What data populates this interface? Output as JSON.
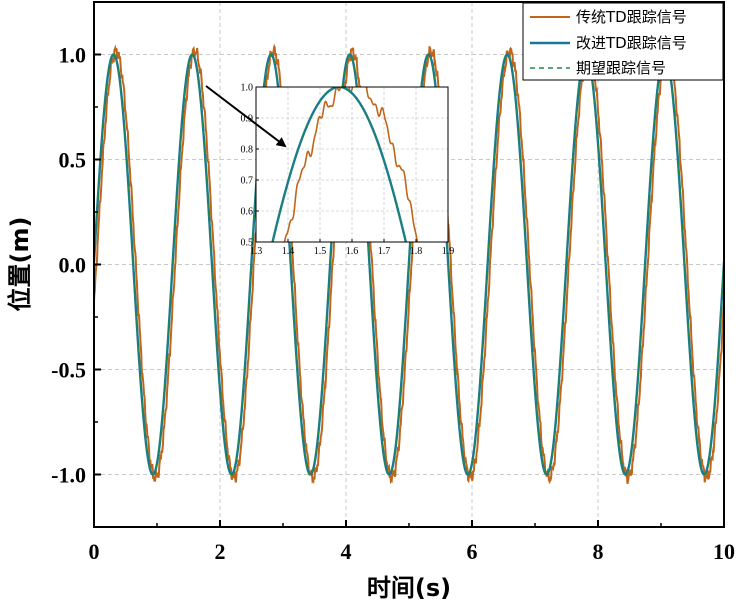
{
  "chart_data": {
    "type": "line",
    "title": "",
    "xlabel": "时间(s)",
    "ylabel": "位置(m)",
    "xlim": [
      0,
      10
    ],
    "ylim": [
      -1.25,
      1.25
    ],
    "xticks": [
      0,
      2,
      4,
      6,
      8,
      10
    ],
    "xtick_labels": [
      "0",
      "2",
      "4",
      "6",
      "8",
      "10"
    ],
    "yticks": [
      -1.0,
      -0.5,
      0.0,
      0.5,
      1.0
    ],
    "ytick_labels": [
      "-1.0",
      "-0.5",
      "0.0",
      "0.5",
      "1.0"
    ],
    "grid": true,
    "legend_position": "top-right",
    "signal": {
      "amplitude": 1.0,
      "frequency_hz": 0.8,
      "first_peak_s": 0.31
    },
    "series": [
      {
        "name": "传统TD跟踪信号",
        "color": "#C0661A",
        "style": "solid",
        "note_lag_s": 0.04
      },
      {
        "name": "改进TD跟踪信号",
        "color": "#17789B",
        "style": "solid"
      },
      {
        "name": "期望跟踪信号",
        "color": "#1F8A4C",
        "style": "dashed"
      }
    ],
    "inset": {
      "xlim": [
        1.3,
        1.9
      ],
      "ylim": [
        0.5,
        1.0
      ],
      "xticks": [
        1.3,
        1.4,
        1.5,
        1.6,
        1.7,
        1.8,
        1.9
      ],
      "xtick_labels": [
        "1.3",
        "1.4",
        "1.5",
        "1.6",
        "1.7",
        "1.8",
        "1.9"
      ],
      "yticks": [
        0.5,
        0.6,
        0.7,
        0.8,
        0.9,
        1.0
      ],
      "ytick_labels": [
        "0.5",
        "0.6",
        "0.7",
        "0.8",
        "0.9",
        "1.0"
      ],
      "zoom_target": {
        "x": 1.56,
        "y": 1.0
      }
    }
  }
}
